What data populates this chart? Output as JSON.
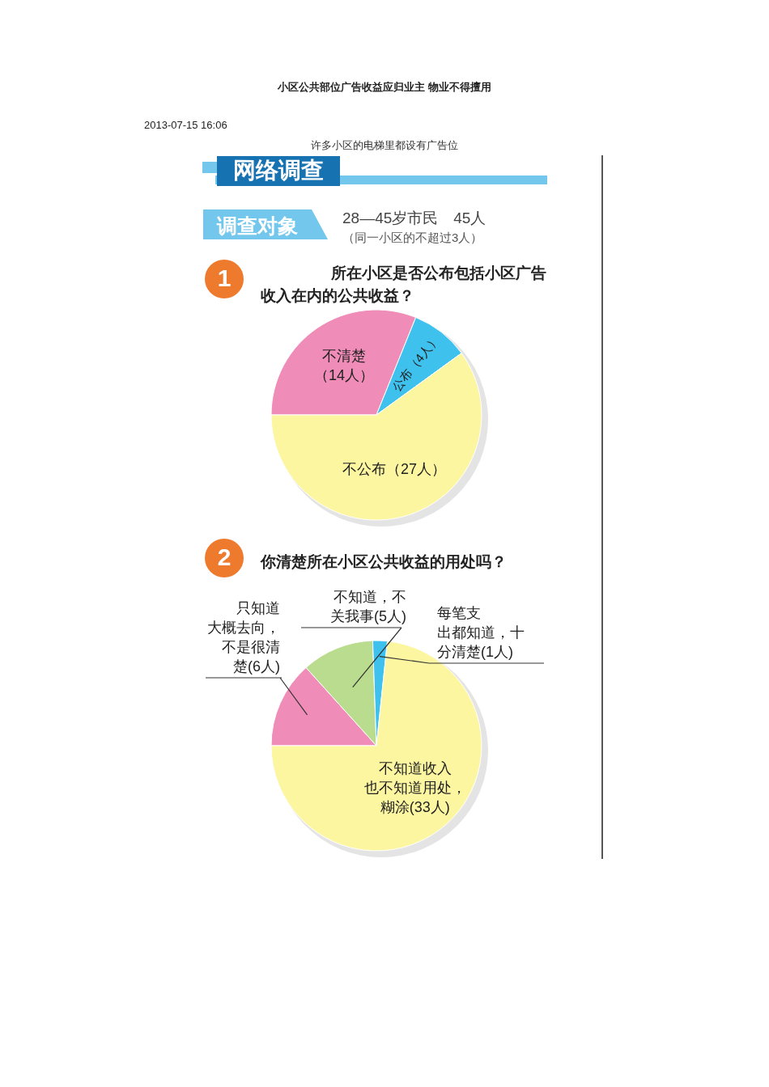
{
  "chart_data": [
    {
      "type": "pie",
      "title": "所在小区是否公布包括小区广告收入在内的公共收益？",
      "annotations": [
        "小区公共部位广告收益应归业主  物业不得擅用",
        "2013-07-15 16:06",
        "许多小区的电梯里都设有广告位",
        "网络调查",
        "调查对象",
        "28—45岁市民　45人",
        "（同一小区的不超过3人）",
        "1"
      ],
      "categories": [
        "不清楚",
        "公布",
        "不公布"
      ],
      "values": [
        14,
        4,
        27
      ],
      "value_labels": [
        "（14人）",
        "（4人）",
        "（27人）"
      ],
      "colors": [
        "#f08cb8",
        "#3fc1ee",
        "#fdf6a1"
      ]
    },
    {
      "type": "pie",
      "title": "你清楚所在小区公共收益的用处吗？",
      "annotations": [
        "2"
      ],
      "categories": [
        "只知道大概去向，不是很清楚",
        "不知道，不关我事",
        "每笔支出都知道，十分清楚",
        "不知道收入也不知道用处，糊涂"
      ],
      "values": [
        6,
        5,
        1,
        33
      ],
      "value_labels": [
        "(6人)",
        "(5人)",
        "(1人)",
        "(33人)"
      ],
      "colors": [
        "#f08cb8",
        "#b9dc8e",
        "#3fc1ee",
        "#fdf6a1"
      ]
    }
  ]
}
